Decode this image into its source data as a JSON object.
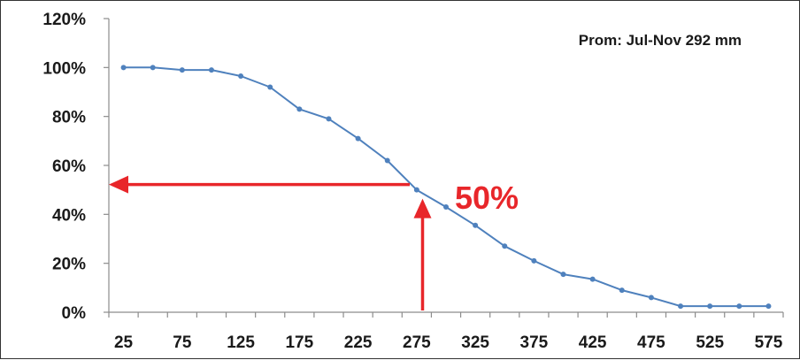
{
  "chart_data": {
    "type": "line",
    "title": "",
    "xlabel": "",
    "ylabel": "",
    "x_ticks": [
      "25",
      "75",
      "125",
      "175",
      "225",
      "275",
      "325",
      "375",
      "425",
      "475",
      "525",
      "575"
    ],
    "y_ticks": [
      "0%",
      "20%",
      "40%",
      "60%",
      "80%",
      "100%",
      "120%"
    ],
    "xlim": [
      12.5,
      587.5
    ],
    "ylim": [
      0,
      120
    ],
    "series": [
      {
        "color": "#4f81bd",
        "x": [
          25,
          50,
          75,
          100,
          125,
          150,
          175,
          200,
          225,
          250,
          275,
          300,
          325,
          350,
          375,
          400,
          425,
          450,
          475,
          500,
          525,
          550,
          575
        ],
        "y": [
          100,
          100,
          99,
          99,
          96.5,
          92,
          83,
          79,
          71,
          62,
          50,
          43,
          35.5,
          27,
          21,
          15.5,
          13.5,
          9,
          6,
          2.5,
          2.5,
          2.5,
          2.5
        ]
      }
    ],
    "annotations": {
      "info_text": "Prom: Jul-Nov 292 mm",
      "info_position": "top-right",
      "percent_label": "50%",
      "marker_x": 280,
      "marker_y": 50,
      "arrow_color": "#e8262a"
    },
    "grid": false,
    "legend": "none"
  }
}
